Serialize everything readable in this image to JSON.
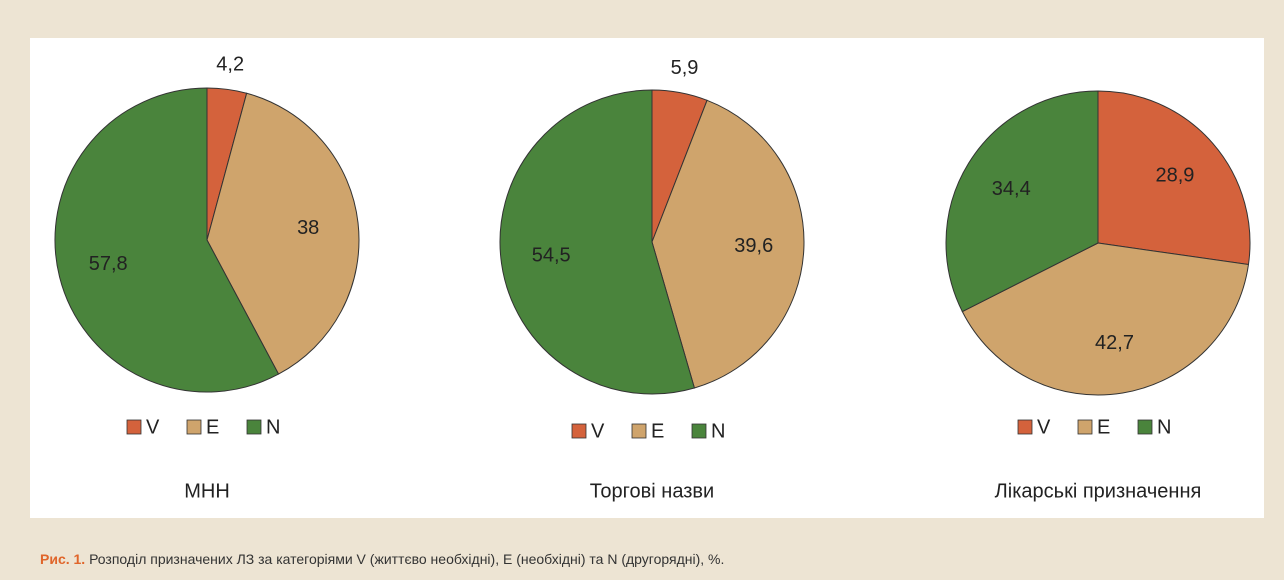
{
  "chart_data": [
    {
      "type": "pie",
      "title": "МНН",
      "categories": [
        "V",
        "E",
        "N"
      ],
      "values": [
        4.2,
        38,
        57.8
      ],
      "value_labels": [
        "4,2",
        "38",
        "57,8"
      ],
      "colors": [
        "#d4623c",
        "#cfa46c",
        "#4a843c"
      ]
    },
    {
      "type": "pie",
      "title": "Торгові назви",
      "categories": [
        "V",
        "E",
        "N"
      ],
      "values": [
        5.9,
        39.6,
        54.5
      ],
      "value_labels": [
        "5,9",
        "39,6",
        "54,5"
      ],
      "colors": [
        "#d4623c",
        "#cfa46c",
        "#4a843c"
      ]
    },
    {
      "type": "pie",
      "title": "Лікарські призначення",
      "categories": [
        "V",
        "E",
        "N"
      ],
      "values": [
        28.9,
        42.7,
        34.4
      ],
      "value_labels": [
        "28,9",
        "42,7",
        "34,4"
      ],
      "colors": [
        "#d4623c",
        "#cfa46c",
        "#4a843c"
      ]
    }
  ],
  "caption": {
    "label": "Рис. 1.",
    "text": "Розподіл призначених ЛЗ за категоріями V (життєво необхідні), E (необхідні) та N (другорядні), %."
  }
}
